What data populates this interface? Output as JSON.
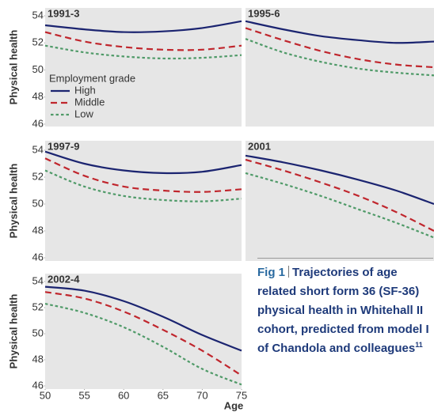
{
  "chart_data": [
    {
      "type": "line",
      "title": "1991-3",
      "y_label": "Physical health",
      "legend_title": "Employment grade",
      "x": [
        50,
        55,
        60,
        65,
        70,
        75
      ],
      "xlim": [
        50,
        75
      ],
      "ylim": [
        46,
        54
      ],
      "yticks": [
        46,
        48,
        50,
        52,
        54
      ],
      "series": [
        {
          "name": "High",
          "color": "#1b2470",
          "dash": "solid",
          "values": [
            53.3,
            53.0,
            52.8,
            52.85,
            53.1,
            53.6
          ]
        },
        {
          "name": "Middle",
          "color": "#c0262d",
          "dash": "dashed",
          "values": [
            52.8,
            52.1,
            51.7,
            51.5,
            51.5,
            51.8
          ]
        },
        {
          "name": "Low",
          "color": "#4f9a68",
          "dash": "dotted",
          "values": [
            51.8,
            51.3,
            51.0,
            50.85,
            50.9,
            51.1
          ]
        }
      ]
    },
    {
      "type": "line",
      "title": "1995-6",
      "x": [
        50,
        55,
        60,
        65,
        70,
        75
      ],
      "xlim": [
        50,
        75
      ],
      "ylim": [
        46,
        54
      ],
      "series": [
        {
          "color": "#1b2470",
          "dash": "solid",
          "values": [
            53.6,
            53.0,
            52.5,
            52.2,
            52.0,
            52.1
          ]
        },
        {
          "color": "#c0262d",
          "dash": "dashed",
          "values": [
            53.1,
            52.2,
            51.4,
            50.8,
            50.4,
            50.2
          ]
        },
        {
          "color": "#4f9a68",
          "dash": "dotted",
          "values": [
            52.3,
            51.3,
            50.6,
            50.1,
            49.8,
            49.6
          ]
        }
      ]
    },
    {
      "type": "line",
      "title": "1997-9",
      "y_label": "Physical health",
      "x": [
        50,
        55,
        60,
        65,
        70,
        75
      ],
      "xlim": [
        50,
        75
      ],
      "ylim": [
        46,
        54
      ],
      "yticks": [
        46,
        48,
        50,
        52,
        54
      ],
      "series": [
        {
          "color": "#1b2470",
          "dash": "solid",
          "values": [
            53.9,
            53.0,
            52.5,
            52.3,
            52.4,
            52.9
          ]
        },
        {
          "color": "#c0262d",
          "dash": "dashed",
          "values": [
            53.4,
            52.1,
            51.3,
            51.0,
            50.9,
            51.1
          ]
        },
        {
          "color": "#4f9a68",
          "dash": "dotted",
          "values": [
            52.5,
            51.3,
            50.6,
            50.3,
            50.2,
            50.4
          ]
        }
      ]
    },
    {
      "type": "line",
      "title": "2001",
      "x": [
        50,
        55,
        60,
        65,
        70,
        75
      ],
      "xlim": [
        50,
        75
      ],
      "ylim": [
        46,
        54
      ],
      "series": [
        {
          "color": "#1b2470",
          "dash": "solid",
          "values": [
            53.6,
            53.1,
            52.5,
            51.8,
            51.0,
            50.0
          ]
        },
        {
          "color": "#c0262d",
          "dash": "dashed",
          "values": [
            53.3,
            52.5,
            51.6,
            50.6,
            49.4,
            48.0
          ]
        },
        {
          "color": "#4f9a68",
          "dash": "dotted",
          "values": [
            52.3,
            51.5,
            50.6,
            49.6,
            48.6,
            47.5
          ]
        }
      ]
    },
    {
      "type": "line",
      "title": "2002-4",
      "y_label": "Physical health",
      "x_label": "Age",
      "x": [
        50,
        55,
        60,
        65,
        70,
        75
      ],
      "xlim": [
        50,
        75
      ],
      "ylim": [
        46,
        54
      ],
      "yticks": [
        46,
        48,
        50,
        52,
        54
      ],
      "xticks": [
        50,
        55,
        60,
        65,
        70,
        75
      ],
      "series": [
        {
          "color": "#1b2470",
          "dash": "solid",
          "values": [
            53.6,
            53.3,
            52.5,
            51.3,
            49.9,
            48.7
          ]
        },
        {
          "color": "#c0262d",
          "dash": "dashed",
          "values": [
            53.2,
            52.7,
            51.7,
            50.3,
            48.7,
            46.8
          ]
        },
        {
          "color": "#4f9a68",
          "dash": "dotted",
          "values": [
            52.3,
            51.6,
            50.5,
            49.0,
            47.3,
            46.1
          ]
        }
      ]
    }
  ],
  "figure_label": "Fig 1",
  "caption": "Trajectories of age related short form 36 (SF-36) physical health in Whitehall II cohort, predicted from model I of Chandola and colleagues",
  "reference": "11"
}
